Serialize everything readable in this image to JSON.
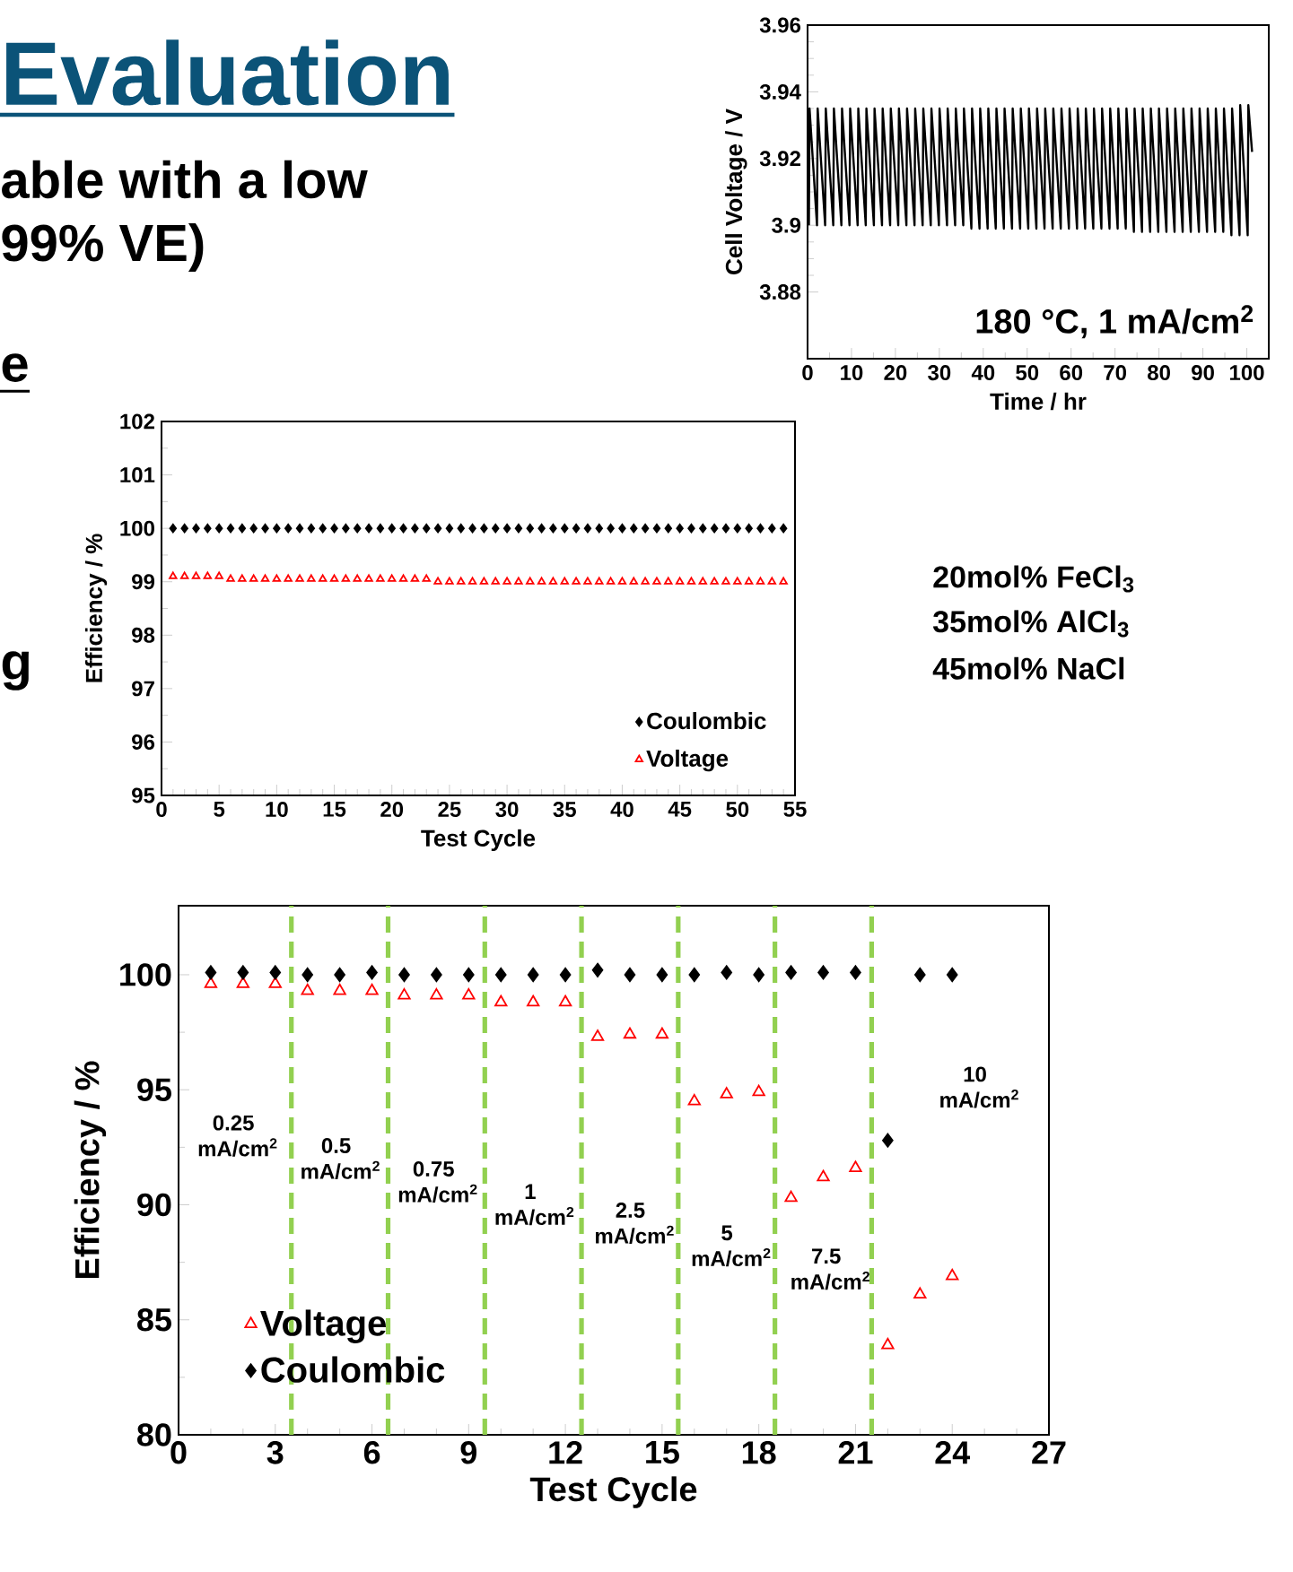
{
  "chart_data": [
    {
      "type": "other",
      "title": "Evaluation",
      "annotations": [
        "able with a low",
        "99% VE)",
        "e",
        "g"
      ]
    },
    {
      "type": "line",
      "xlabel": "Time / hr",
      "ylabel": "Cell Voltage / V",
      "xlim": [
        0,
        105
      ],
      "ylim": [
        3.86,
        3.96
      ],
      "xticks": [
        0,
        10,
        20,
        30,
        40,
        50,
        60,
        70,
        80,
        90,
        100
      ],
      "yticks": [
        3.88,
        3.9,
        3.92,
        3.94,
        3.96
      ],
      "line_style": "solid",
      "annotations": [
        "180 °C, 1 mA/cm$^{2}$",
        "20mol% FeCl$_{3}$",
        "35mol% AlCl$_{3}$",
        "45mol% NaCl"
      ],
      "series": [
        {
          "color": "#000000",
          "x": [
            0.3,
            0.45,
            2.15,
            2.3,
            4.0,
            4.15,
            5.85,
            6.0,
            7.7,
            7.85,
            9.55,
            9.7,
            11.4,
            11.55,
            13.25,
            13.4,
            15.1,
            15.25,
            16.95,
            17.1,
            18.8,
            18.95,
            20.65,
            20.8,
            22.5,
            22.65,
            24.35,
            24.5,
            26.2,
            26.35,
            28.05,
            28.2,
            29.9,
            30.05,
            31.75,
            31.9,
            33.6,
            33.75,
            35.45,
            35.6,
            37.3,
            37.45,
            39.15,
            39.3,
            41.0,
            41.15,
            42.85,
            43.0,
            44.7,
            44.85,
            46.55,
            46.7,
            48.4,
            48.55,
            50.25,
            50.4,
            52.1,
            52.25,
            53.95,
            54.1,
            55.8,
            55.95,
            57.65,
            57.8,
            59.5,
            59.65,
            61.35,
            61.5,
            63.2,
            63.35,
            65.05,
            65.2,
            66.9,
            67.05,
            68.75,
            68.9,
            70.6,
            70.75,
            72.45,
            72.6,
            74.3,
            74.45,
            76.15,
            76.3,
            78.0,
            78.15,
            79.85,
            80.0,
            81.7,
            81.85,
            83.55,
            83.7,
            85.4,
            85.55,
            87.25,
            87.4,
            89.1,
            89.25,
            90.95,
            91.1,
            92.8,
            92.95,
            94.65,
            94.8,
            96.5,
            96.65,
            98.35,
            98.5,
            100.2,
            100.35,
            101.2
          ],
          "values": [
            3.9,
            3.935,
            3.9,
            3.935,
            3.9,
            3.935,
            3.9,
            3.935,
            3.9,
            3.935,
            3.9,
            3.935,
            3.9,
            3.935,
            3.9,
            3.935,
            3.9,
            3.935,
            3.9,
            3.935,
            3.9,
            3.935,
            3.9,
            3.935,
            3.9,
            3.935,
            3.9,
            3.935,
            3.9,
            3.935,
            3.9,
            3.935,
            3.9,
            3.935,
            3.9,
            3.935,
            3.9,
            3.935,
            3.9,
            3.935,
            3.899,
            3.935,
            3.899,
            3.935,
            3.899,
            3.935,
            3.899,
            3.935,
            3.899,
            3.935,
            3.899,
            3.935,
            3.899,
            3.935,
            3.899,
            3.935,
            3.899,
            3.935,
            3.899,
            3.935,
            3.899,
            3.935,
            3.899,
            3.935,
            3.899,
            3.935,
            3.899,
            3.935,
            3.899,
            3.935,
            3.899,
            3.935,
            3.899,
            3.935,
            3.899,
            3.935,
            3.899,
            3.935,
            3.899,
            3.935,
            3.898,
            3.935,
            3.898,
            3.935,
            3.898,
            3.935,
            3.898,
            3.935,
            3.898,
            3.935,
            3.898,
            3.935,
            3.898,
            3.935,
            3.898,
            3.935,
            3.898,
            3.935,
            3.898,
            3.935,
            3.898,
            3.935,
            3.898,
            3.935,
            3.897,
            3.935,
            3.897,
            3.936,
            3.897,
            3.936,
            3.922
          ]
        }
      ]
    },
    {
      "type": "scatter",
      "xlabel": "Test Cycle",
      "ylabel": "Efficiency / %",
      "xlim": [
        0,
        55
      ],
      "ylim": [
        95,
        102
      ],
      "xticks": [
        0,
        5,
        10,
        15,
        20,
        25,
        30,
        35,
        40,
        45,
        50,
        55
      ],
      "yticks": [
        95,
        96,
        97,
        98,
        99,
        100,
        101,
        102
      ],
      "legend": "bottom right",
      "x": [
        1,
        2,
        3,
        4,
        5,
        6,
        7,
        8,
        9,
        10,
        11,
        12,
        13,
        14,
        15,
        16,
        17,
        18,
        19,
        20,
        21,
        22,
        23,
        24,
        25,
        26,
        27,
        28,
        29,
        30,
        31,
        32,
        33,
        34,
        35,
        36,
        37,
        38,
        39,
        40,
        41,
        42,
        43,
        44,
        45,
        46,
        47,
        48,
        49,
        50,
        51,
        52,
        53,
        54
      ],
      "series": [
        {
          "name": "Coulombic",
          "color": "#000000",
          "marker": "diamond",
          "values": [
            100,
            100,
            100,
            100,
            100,
            100,
            100,
            100,
            100,
            100,
            100,
            100,
            100,
            100,
            100,
            100,
            100,
            100,
            100,
            100,
            100,
            100,
            100,
            100,
            100,
            100,
            100,
            100,
            100,
            100,
            100,
            100,
            100,
            100,
            100,
            100,
            100,
            100,
            100,
            100,
            100,
            100,
            100,
            100,
            100,
            100,
            100,
            100,
            100,
            100,
            100,
            100,
            100,
            100
          ]
        },
        {
          "name": "Voltage",
          "color": "#ff0000",
          "marker": "triangle",
          "values": [
            99.1,
            99.1,
            99.1,
            99.1,
            99.1,
            99.05,
            99.05,
            99.05,
            99.05,
            99.05,
            99.05,
            99.05,
            99.05,
            99.05,
            99.05,
            99.05,
            99.05,
            99.05,
            99.05,
            99.05,
            99.05,
            99.05,
            99.05,
            99.0,
            99.0,
            99.0,
            99.0,
            99.0,
            99.0,
            99.0,
            99.0,
            99.0,
            99.0,
            99.0,
            99.0,
            99.0,
            99.0,
            99.0,
            99.0,
            99.0,
            99.0,
            99.0,
            99.0,
            99.0,
            99.0,
            99.0,
            99.0,
            99.0,
            99.0,
            99.0,
            99.0,
            99.0,
            99.0,
            99.0
          ]
        }
      ]
    },
    {
      "type": "scatter",
      "xlabel": "Test Cycle",
      "ylabel": "Efficiency / %",
      "xlim": [
        0,
        27
      ],
      "ylim": [
        80,
        103
      ],
      "xticks": [
        0,
        3,
        6,
        9,
        12,
        15,
        18,
        21,
        24,
        27
      ],
      "yticks": [
        80,
        85,
        90,
        95,
        100
      ],
      "legend": "bottom left",
      "x": [
        1,
        2,
        3,
        4,
        5,
        6,
        7,
        8,
        9,
        10,
        11,
        12,
        13,
        14,
        15,
        16,
        17,
        18,
        19,
        20,
        21,
        22,
        23,
        24
      ],
      "series": [
        {
          "name": "Voltage",
          "color": "#ff0000",
          "marker": "triangle",
          "values": [
            99.6,
            99.6,
            99.6,
            99.3,
            99.3,
            99.3,
            99.1,
            99.1,
            99.1,
            98.8,
            98.8,
            98.8,
            97.3,
            97.4,
            97.4,
            94.5,
            94.8,
            94.9,
            90.3,
            91.2,
            91.6,
            83.9,
            86.1,
            86.9
          ]
        },
        {
          "name": "Coulombic",
          "color": "#000000",
          "marker": "diamond",
          "values": [
            100.1,
            100.1,
            100.1,
            100,
            100,
            100.1,
            100,
            100,
            100,
            100,
            100,
            100,
            100.2,
            100,
            100,
            100,
            100.1,
            100,
            100.1,
            100.1,
            100.1,
            92.8,
            100,
            100
          ]
        }
      ],
      "ref_lines": [
        {
          "axis": "x",
          "value": 3.5,
          "color": "#92d050",
          "line_style": "dashed"
        },
        {
          "axis": "x",
          "value": 6.5,
          "color": "#92d050",
          "line_style": "dashed"
        },
        {
          "axis": "x",
          "value": 9.5,
          "color": "#92d050",
          "line_style": "dashed"
        },
        {
          "axis": "x",
          "value": 12.5,
          "color": "#92d050",
          "line_style": "dashed"
        },
        {
          "axis": "x",
          "value": 15.5,
          "color": "#92d050",
          "line_style": "dashed"
        },
        {
          "axis": "x",
          "value": 18.5,
          "color": "#92d050",
          "line_style": "dashed"
        },
        {
          "axis": "x",
          "value": 21.5,
          "color": "#92d050",
          "line_style": "dashed"
        }
      ],
      "annotations": [
        "0.25 mA/cm$^{2}$",
        "0.5 mA/cm$^{2}$",
        "0.75 mA/cm$^{2}$",
        "1 mA/cm$^{2}$",
        "2.5 mA/cm$^{2}$",
        "5 mA/cm$^{2}$",
        "7.5 mA/cm$^{2}$",
        "10 mA/cm$^{2}$"
      ]
    }
  ]
}
